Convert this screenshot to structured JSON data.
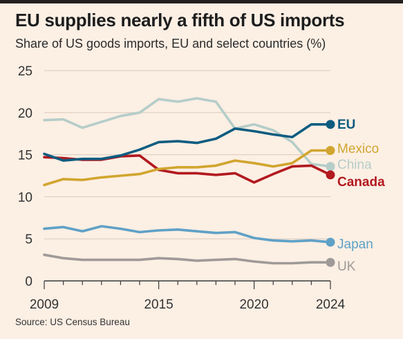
{
  "title": "EU supplies nearly a fifth of US imports",
  "subtitle": "Share of US goods imports, EU and select countries (%)",
  "source": "Source: US Census Bureau",
  "chart_data": {
    "type": "line",
    "x": [
      2009,
      2010,
      2011,
      2012,
      2013,
      2014,
      2015,
      2016,
      2017,
      2018,
      2019,
      2020,
      2021,
      2022,
      2023,
      2024
    ],
    "xticks": [
      2009,
      2015,
      2020,
      2024
    ],
    "yticks": [
      0,
      5,
      10,
      15,
      20,
      25
    ],
    "ylim": [
      0,
      25
    ],
    "xlim": [
      2009,
      2024
    ],
    "grid": true,
    "series": [
      {
        "name": "China",
        "color": "#b5cdc9",
        "values": [
          19.1,
          19.2,
          18.2,
          18.9,
          19.6,
          20.0,
          21.6,
          21.3,
          21.7,
          21.3,
          18.1,
          18.6,
          17.9,
          16.5,
          13.9,
          13.6
        ]
      },
      {
        "name": "Canada",
        "color": "#b2191f",
        "values": [
          14.7,
          14.6,
          14.4,
          14.4,
          14.8,
          14.9,
          13.2,
          12.8,
          12.8,
          12.6,
          12.8,
          11.7,
          12.7,
          13.6,
          13.7,
          12.6
        ]
      },
      {
        "name": "Mexico",
        "color": "#d1a52e",
        "values": [
          11.4,
          12.1,
          12.0,
          12.3,
          12.5,
          12.7,
          13.3,
          13.5,
          13.5,
          13.7,
          14.3,
          14.0,
          13.6,
          14.0,
          15.5,
          15.5
        ]
      },
      {
        "name": "EU",
        "color": "#0d5c80",
        "values": [
          15.1,
          14.3,
          14.5,
          14.5,
          14.9,
          15.6,
          16.5,
          16.6,
          16.4,
          16.9,
          18.1,
          17.8,
          17.4,
          17.1,
          18.6,
          18.6
        ]
      },
      {
        "name": "Japan",
        "color": "#5fa1c6",
        "values": [
          6.2,
          6.4,
          5.9,
          6.5,
          6.2,
          5.8,
          6.0,
          6.1,
          5.9,
          5.7,
          5.8,
          5.1,
          4.8,
          4.7,
          4.8,
          4.6
        ]
      },
      {
        "name": "UK",
        "color": "#9f9a98",
        "values": [
          3.1,
          2.7,
          2.5,
          2.5,
          2.5,
          2.5,
          2.7,
          2.6,
          2.4,
          2.5,
          2.6,
          2.3,
          2.1,
          2.1,
          2.2,
          2.2
        ]
      }
    ]
  }
}
